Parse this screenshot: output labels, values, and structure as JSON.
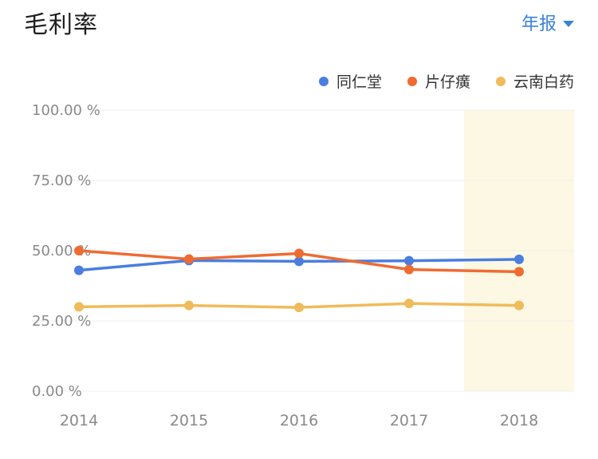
{
  "header": {
    "title": "毛利率",
    "period_label": "年报"
  },
  "colors": {
    "同仁堂": "#4a7ee0",
    "片仔癀": "#ef6b31",
    "云南白药": "#f0bb5a",
    "highlight": "#fdf8e4",
    "grid": "#efefef"
  },
  "chart_data": {
    "type": "line",
    "categories": [
      "2014",
      "2015",
      "2016",
      "2017",
      "2018"
    ],
    "y_ticks": [
      "0.00 %",
      "25.00 %",
      "50.00 %",
      "75.00 %",
      "100.00 %"
    ],
    "ylim": [
      0,
      100
    ],
    "grid": true,
    "legend_position": "top-right",
    "highlight_category": "2018",
    "series": [
      {
        "name": "同仁堂",
        "values": [
          43,
          46.5,
          46.2,
          46.4,
          46.9
        ]
      },
      {
        "name": "片仔癀",
        "values": [
          50,
          47,
          49,
          43.3,
          42.5
        ]
      },
      {
        "name": "云南白药",
        "values": [
          30,
          30.5,
          29.8,
          31.2,
          30.5
        ]
      }
    ]
  }
}
